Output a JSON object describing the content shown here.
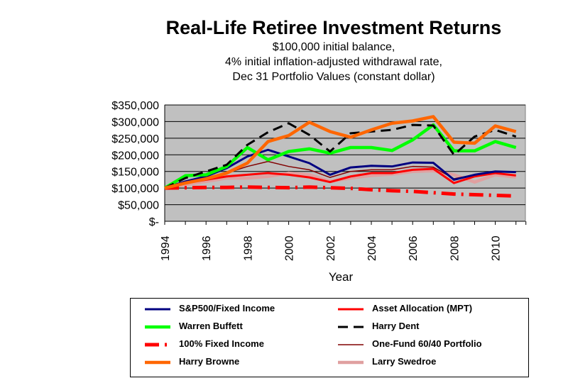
{
  "chart_data": {
    "type": "line",
    "title": "Real-Life Retiree Investment Returns",
    "subtitle": [
      "$100,000 initial balance,",
      "4% initial inflation-adjusted withdrawal rate,",
      "Dec 31 Portfolio Values (constant dollar)"
    ],
    "xlabel": "Year",
    "ylabel": "",
    "x": [
      1994,
      1995,
      1996,
      1997,
      1998,
      1999,
      2000,
      2001,
      2002,
      2003,
      2004,
      2005,
      2006,
      2007,
      2008,
      2009,
      2010,
      2011
    ],
    "xticks": [
      "1994",
      "1996",
      "1998",
      "2000",
      "2002",
      "2004",
      "2006",
      "2008",
      "2010"
    ],
    "yticks": [
      "$-",
      "$50,000",
      "$100,000",
      "$150,000",
      "$200,000",
      "$250,000",
      "$300,000",
      "$350,000"
    ],
    "ylim": [
      0,
      350000
    ],
    "grid": true,
    "plot_background": "#c0c0c0",
    "legend_position": "bottom",
    "series": [
      {
        "name": "S&P500/Fixed Income",
        "color": "#000080",
        "style": "solid",
        "values": [
          100000,
          120000,
          135000,
          160000,
          195000,
          215000,
          195000,
          175000,
          140000,
          162000,
          167000,
          165000,
          177000,
          176000,
          125000,
          140000,
          150000,
          148000
        ]
      },
      {
        "name": "Asset Allocation (MPT)",
        "color": "#ff0000",
        "style": "solid",
        "values": [
          100000,
          115000,
          125000,
          135000,
          140000,
          145000,
          140000,
          132000,
          118000,
          135000,
          145000,
          145000,
          155000,
          158000,
          115000,
          135000,
          145000,
          138000
        ]
      },
      {
        "name": "Warren Buffett",
        "color": "#00ff00",
        "style": "thick",
        "values": [
          100000,
          137000,
          140000,
          165000,
          222000,
          185000,
          210000,
          218000,
          205000,
          222000,
          222000,
          213000,
          245000,
          290000,
          212000,
          212000,
          240000,
          222000
        ]
      },
      {
        "name": "Harry Dent",
        "color": "#000000",
        "style": "dash",
        "values": [
          100000,
          130000,
          150000,
          170000,
          230000,
          268000,
          295000,
          260000,
          210000,
          265000,
          270000,
          275000,
          290000,
          288000,
          200000,
          255000,
          275000,
          255000
        ]
      },
      {
        "name": "100% Fixed Income",
        "color": "#ff0000",
        "style": "dashdot",
        "values": [
          100000,
          101000,
          102000,
          102000,
          103000,
          102000,
          101000,
          103000,
          101000,
          99000,
          95000,
          92000,
          90000,
          86000,
          82000,
          80000,
          78000,
          76000
        ]
      },
      {
        "name": "One-Fund 60/40 Portfolio",
        "color": "#800000",
        "style": "thin",
        "values": [
          100000,
          118000,
          130000,
          145000,
          165000,
          180000,
          165000,
          155000,
          132000,
          150000,
          155000,
          155000,
          165000,
          163000,
          128000,
          140000,
          148000,
          148000
        ]
      },
      {
        "name": "Harry Browne",
        "color": "#ff6600",
        "style": "thick",
        "values": [
          100000,
          115000,
          128000,
          145000,
          175000,
          240000,
          258000,
          298000,
          270000,
          253000,
          275000,
          295000,
          302000,
          315000,
          238000,
          235000,
          287000,
          270000
        ]
      },
      {
        "name": "Larry Swedroe",
        "color": "#e0a0a0",
        "style": "thick",
        "values": [
          100000,
          110000,
          120000,
          130000,
          130000,
          135000,
          145000,
          140000,
          120000,
          130000,
          138000,
          142000,
          150000,
          152000,
          140000,
          118000,
          140000,
          133000
        ]
      }
    ]
  }
}
